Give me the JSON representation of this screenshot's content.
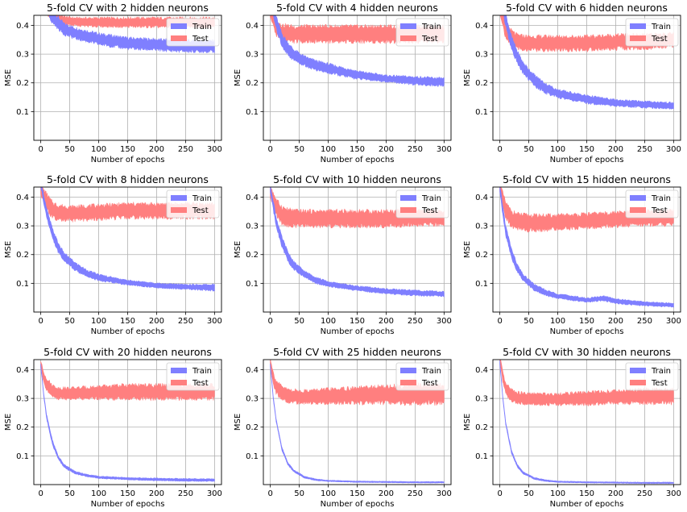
{
  "colors": {
    "train": "#7f7fff",
    "test": "#ff7f7f",
    "grid": "#b0b0b0",
    "frame": "#000000"
  },
  "chart_data": [
    {
      "type": "area",
      "title": "5-fold CV with 2 hidden neurons",
      "xlabel": "Number of epochs",
      "ylabel": "MSE",
      "xlim": [
        -12,
        312
      ],
      "ylim": [
        0,
        0.435
      ],
      "x_ticks": [
        "0",
        "50",
        "100",
        "150",
        "200",
        "250",
        "300"
      ],
      "y_ticks": [
        "0.1",
        "0.2",
        "0.3",
        "0.4"
      ],
      "grid": true,
      "legend_position": "top-right",
      "series": [
        {
          "name": "Train",
          "x": [
            0,
            10,
            20,
            40,
            60,
            80,
            100,
            150,
            200,
            250,
            300
          ],
          "y_low": [
            0.5,
            0.45,
            0.41,
            0.37,
            0.355,
            0.345,
            0.335,
            0.32,
            0.315,
            0.31,
            0.31
          ],
          "y_high": [
            0.55,
            0.5,
            0.45,
            0.405,
            0.39,
            0.38,
            0.37,
            0.355,
            0.35,
            0.345,
            0.345
          ]
        },
        {
          "name": "Test",
          "x": [
            0,
            10,
            20,
            40,
            60,
            80,
            100,
            150,
            200,
            250,
            300
          ],
          "y_low": [
            0.52,
            0.44,
            0.415,
            0.405,
            0.4,
            0.398,
            0.397,
            0.396,
            0.395,
            0.395,
            0.395
          ],
          "y_high": [
            0.56,
            0.48,
            0.44,
            0.43,
            0.425,
            0.425,
            0.425,
            0.425,
            0.425,
            0.425,
            0.425
          ]
        }
      ]
    },
    {
      "type": "area",
      "title": "5-fold CV with 4 hidden neurons",
      "xlabel": "Number of epochs",
      "ylabel": "MSE",
      "xlim": [
        -12,
        312
      ],
      "ylim": [
        0,
        0.435
      ],
      "x_ticks": [
        "0",
        "50",
        "100",
        "150",
        "200",
        "250",
        "300"
      ],
      "y_ticks": [
        "0.1",
        "0.2",
        "0.3",
        "0.4"
      ],
      "grid": true,
      "legend_position": "top-right",
      "series": [
        {
          "name": "Train",
          "x": [
            0,
            10,
            20,
            30,
            40,
            60,
            80,
            100,
            150,
            200,
            250,
            300
          ],
          "y_low": [
            0.48,
            0.39,
            0.33,
            0.3,
            0.28,
            0.26,
            0.245,
            0.235,
            0.215,
            0.205,
            0.195,
            0.19
          ],
          "y_high": [
            0.52,
            0.43,
            0.37,
            0.34,
            0.315,
            0.29,
            0.275,
            0.265,
            0.24,
            0.225,
            0.22,
            0.215
          ]
        },
        {
          "name": "Test",
          "x": [
            0,
            10,
            20,
            40,
            60,
            80,
            100,
            150,
            200,
            250,
            300
          ],
          "y_low": [
            0.43,
            0.37,
            0.35,
            0.345,
            0.345,
            0.345,
            0.345,
            0.345,
            0.345,
            0.345,
            0.345
          ],
          "y_high": [
            0.46,
            0.42,
            0.4,
            0.395,
            0.395,
            0.395,
            0.395,
            0.395,
            0.395,
            0.395,
            0.395
          ]
        }
      ]
    },
    {
      "type": "area",
      "title": "5-fold CV with 6 hidden neurons",
      "xlabel": "Number of epochs",
      "ylabel": "MSE",
      "xlim": [
        -12,
        312
      ],
      "ylim": [
        0,
        0.435
      ],
      "x_ticks": [
        "0",
        "50",
        "100",
        "150",
        "200",
        "250",
        "300"
      ],
      "y_ticks": [
        "0.1",
        "0.2",
        "0.3",
        "0.4"
      ],
      "grid": true,
      "legend_position": "top-right",
      "series": [
        {
          "name": "Train",
          "x": [
            0,
            10,
            20,
            30,
            40,
            60,
            80,
            100,
            150,
            200,
            250,
            300
          ],
          "y_low": [
            0.5,
            0.4,
            0.32,
            0.27,
            0.235,
            0.19,
            0.165,
            0.15,
            0.13,
            0.12,
            0.115,
            0.11
          ],
          "y_high": [
            0.54,
            0.44,
            0.36,
            0.31,
            0.27,
            0.225,
            0.195,
            0.175,
            0.155,
            0.14,
            0.135,
            0.13
          ]
        },
        {
          "name": "Test",
          "x": [
            0,
            10,
            20,
            30,
            50,
            100,
            150,
            200,
            250,
            300
          ],
          "y_low": [
            0.44,
            0.36,
            0.33,
            0.32,
            0.315,
            0.315,
            0.315,
            0.32,
            0.32,
            0.33
          ],
          "y_high": [
            0.47,
            0.41,
            0.38,
            0.365,
            0.36,
            0.36,
            0.36,
            0.365,
            0.365,
            0.37
          ]
        }
      ]
    },
    {
      "type": "area",
      "title": "5-fold CV with 8 hidden neurons",
      "xlabel": "Number of epochs",
      "ylabel": "MSE",
      "xlim": [
        -12,
        312
      ],
      "ylim": [
        0,
        0.435
      ],
      "x_ticks": [
        "0",
        "50",
        "100",
        "150",
        "200",
        "250",
        "300"
      ],
      "y_ticks": [
        "0.1",
        "0.2",
        "0.3",
        "0.4"
      ],
      "grid": true,
      "legend_position": "top-right",
      "series": [
        {
          "name": "Train",
          "x": [
            0,
            5,
            10,
            20,
            30,
            40,
            60,
            80,
            100,
            150,
            200,
            250,
            300
          ],
          "y_low": [
            0.44,
            0.38,
            0.33,
            0.26,
            0.21,
            0.18,
            0.145,
            0.125,
            0.11,
            0.095,
            0.085,
            0.08,
            0.075
          ],
          "y_high": [
            0.46,
            0.41,
            0.36,
            0.29,
            0.24,
            0.205,
            0.17,
            0.145,
            0.13,
            0.11,
            0.1,
            0.095,
            0.095
          ]
        },
        {
          "name": "Test",
          "x": [
            0,
            10,
            20,
            30,
            50,
            100,
            150,
            200,
            250,
            300
          ],
          "y_low": [
            0.41,
            0.36,
            0.33,
            0.32,
            0.32,
            0.325,
            0.33,
            0.33,
            0.33,
            0.33
          ],
          "y_high": [
            0.44,
            0.41,
            0.38,
            0.37,
            0.365,
            0.37,
            0.375,
            0.375,
            0.375,
            0.375
          ]
        }
      ]
    },
    {
      "type": "area",
      "title": "5-fold CV with 10 hidden neurons",
      "xlabel": "Number of epochs",
      "ylabel": "MSE",
      "xlim": [
        -12,
        312
      ],
      "ylim": [
        0,
        0.435
      ],
      "x_ticks": [
        "0",
        "50",
        "100",
        "150",
        "200",
        "250",
        "300"
      ],
      "y_ticks": [
        "0.1",
        "0.2",
        "0.3",
        "0.4"
      ],
      "grid": true,
      "legend_position": "top-right",
      "series": [
        {
          "name": "Train",
          "x": [
            0,
            5,
            10,
            20,
            30,
            40,
            60,
            80,
            100,
            150,
            200,
            250,
            300
          ],
          "y_low": [
            0.42,
            0.36,
            0.3,
            0.23,
            0.18,
            0.15,
            0.12,
            0.1,
            0.09,
            0.075,
            0.065,
            0.058,
            0.055
          ],
          "y_high": [
            0.44,
            0.39,
            0.33,
            0.26,
            0.21,
            0.175,
            0.14,
            0.12,
            0.105,
            0.09,
            0.08,
            0.075,
            0.07
          ]
        },
        {
          "name": "Test",
          "x": [
            0,
            10,
            20,
            30,
            50,
            100,
            150,
            200,
            250,
            300
          ],
          "y_low": [
            0.4,
            0.34,
            0.31,
            0.3,
            0.3,
            0.3,
            0.3,
            0.3,
            0.305,
            0.305
          ],
          "y_high": [
            0.44,
            0.39,
            0.365,
            0.355,
            0.35,
            0.35,
            0.35,
            0.35,
            0.35,
            0.35
          ]
        }
      ]
    },
    {
      "type": "area",
      "title": "5-fold CV with 15 hidden neurons",
      "xlabel": "Number of epochs",
      "ylabel": "MSE",
      "xlim": [
        -12,
        312
      ],
      "ylim": [
        0,
        0.435
      ],
      "x_ticks": [
        "0",
        "50",
        "100",
        "150",
        "200",
        "250",
        "300"
      ],
      "y_ticks": [
        "0.1",
        "0.2",
        "0.3",
        "0.4"
      ],
      "grid": true,
      "legend_position": "top-right",
      "series": [
        {
          "name": "Train",
          "x": [
            0,
            5,
            10,
            20,
            30,
            40,
            60,
            80,
            100,
            150,
            180,
            200,
            250,
            300
          ],
          "y_low": [
            0.42,
            0.34,
            0.27,
            0.19,
            0.14,
            0.11,
            0.075,
            0.058,
            0.048,
            0.035,
            0.04,
            0.03,
            0.022,
            0.018
          ],
          "y_high": [
            0.44,
            0.37,
            0.3,
            0.22,
            0.165,
            0.13,
            0.095,
            0.075,
            0.063,
            0.048,
            0.055,
            0.045,
            0.035,
            0.03
          ]
        },
        {
          "name": "Test",
          "x": [
            0,
            10,
            20,
            30,
            50,
            100,
            150,
            200,
            250,
            300
          ],
          "y_low": [
            0.42,
            0.33,
            0.3,
            0.29,
            0.285,
            0.29,
            0.295,
            0.3,
            0.305,
            0.305
          ],
          "y_high": [
            0.45,
            0.38,
            0.35,
            0.34,
            0.335,
            0.335,
            0.34,
            0.345,
            0.35,
            0.35
          ]
        }
      ]
    },
    {
      "type": "area",
      "title": "5-fold CV with 20 hidden neurons",
      "xlabel": "Number of epochs",
      "ylabel": "MSE",
      "xlim": [
        -12,
        312
      ],
      "ylim": [
        0,
        0.435
      ],
      "x_ticks": [
        "0",
        "50",
        "100",
        "150",
        "200",
        "250",
        "300"
      ],
      "y_ticks": [
        "0.1",
        "0.2",
        "0.3",
        "0.4"
      ],
      "grid": true,
      "legend_position": "top-right",
      "series": [
        {
          "name": "Train",
          "x": [
            0,
            5,
            10,
            20,
            30,
            40,
            60,
            80,
            100,
            150,
            200,
            250,
            300
          ],
          "y_low": [
            0.41,
            0.31,
            0.23,
            0.14,
            0.09,
            0.06,
            0.037,
            0.028,
            0.022,
            0.017,
            0.014,
            0.012,
            0.012
          ],
          "y_high": [
            0.42,
            0.32,
            0.245,
            0.155,
            0.1,
            0.07,
            0.045,
            0.035,
            0.029,
            0.024,
            0.022,
            0.02,
            0.02
          ]
        },
        {
          "name": "Test",
          "x": [
            0,
            5,
            10,
            20,
            30,
            50,
            100,
            150,
            200,
            250,
            300
          ],
          "y_low": [
            0.41,
            0.36,
            0.33,
            0.31,
            0.3,
            0.3,
            0.3,
            0.3,
            0.3,
            0.3,
            0.3
          ],
          "y_high": [
            0.43,
            0.39,
            0.37,
            0.345,
            0.335,
            0.335,
            0.34,
            0.345,
            0.345,
            0.345,
            0.345
          ]
        }
      ]
    },
    {
      "type": "area",
      "title": "5-fold CV with 25 hidden neurons",
      "xlabel": "Number of epochs",
      "ylabel": "MSE",
      "xlim": [
        -12,
        312
      ],
      "ylim": [
        0,
        0.435
      ],
      "x_ticks": [
        "0",
        "50",
        "100",
        "150",
        "200",
        "250",
        "300"
      ],
      "y_ticks": [
        "0.1",
        "0.2",
        "0.3",
        "0.4"
      ],
      "grid": true,
      "legend_position": "top-right",
      "series": [
        {
          "name": "Train",
          "x": [
            0,
            5,
            10,
            20,
            30,
            40,
            60,
            80,
            100,
            150,
            200,
            250,
            300
          ],
          "y_low": [
            0.41,
            0.3,
            0.22,
            0.12,
            0.07,
            0.045,
            0.022,
            0.014,
            0.011,
            0.008,
            0.007,
            0.006,
            0.006
          ],
          "y_high": [
            0.42,
            0.31,
            0.23,
            0.13,
            0.078,
            0.052,
            0.028,
            0.019,
            0.015,
            0.012,
            0.011,
            0.01,
            0.01
          ]
        },
        {
          "name": "Test",
          "x": [
            0,
            5,
            10,
            20,
            30,
            50,
            100,
            150,
            200,
            250,
            300
          ],
          "y_low": [
            0.42,
            0.35,
            0.32,
            0.3,
            0.29,
            0.285,
            0.285,
            0.285,
            0.285,
            0.285,
            0.285
          ],
          "y_high": [
            0.44,
            0.39,
            0.36,
            0.34,
            0.33,
            0.325,
            0.33,
            0.335,
            0.34,
            0.345,
            0.345
          ]
        }
      ]
    },
    {
      "type": "area",
      "title": "5-fold CV with 30 hidden neurons",
      "xlabel": "Number of epochs",
      "ylabel": "MSE",
      "xlim": [
        -12,
        312
      ],
      "ylim": [
        0,
        0.435
      ],
      "x_ticks": [
        "0",
        "50",
        "100",
        "150",
        "200",
        "250",
        "300"
      ],
      "y_ticks": [
        "0.1",
        "0.2",
        "0.3",
        "0.4"
      ],
      "grid": true,
      "legend_position": "top-right",
      "series": [
        {
          "name": "Train",
          "x": [
            0,
            5,
            10,
            20,
            30,
            40,
            60,
            80,
            100,
            150,
            200,
            250,
            300
          ],
          "y_low": [
            0.42,
            0.3,
            0.21,
            0.11,
            0.062,
            0.038,
            0.018,
            0.011,
            0.008,
            0.006,
            0.005,
            0.004,
            0.004
          ],
          "y_high": [
            0.43,
            0.31,
            0.22,
            0.12,
            0.07,
            0.045,
            0.024,
            0.016,
            0.012,
            0.01,
            0.009,
            0.008,
            0.008
          ]
        },
        {
          "name": "Test",
          "x": [
            0,
            5,
            10,
            20,
            30,
            50,
            100,
            150,
            200,
            250,
            300
          ],
          "y_low": [
            0.43,
            0.36,
            0.32,
            0.29,
            0.285,
            0.28,
            0.28,
            0.28,
            0.285,
            0.285,
            0.285
          ],
          "y_high": [
            0.45,
            0.39,
            0.35,
            0.33,
            0.32,
            0.315,
            0.315,
            0.32,
            0.325,
            0.33,
            0.33
          ]
        }
      ]
    }
  ]
}
